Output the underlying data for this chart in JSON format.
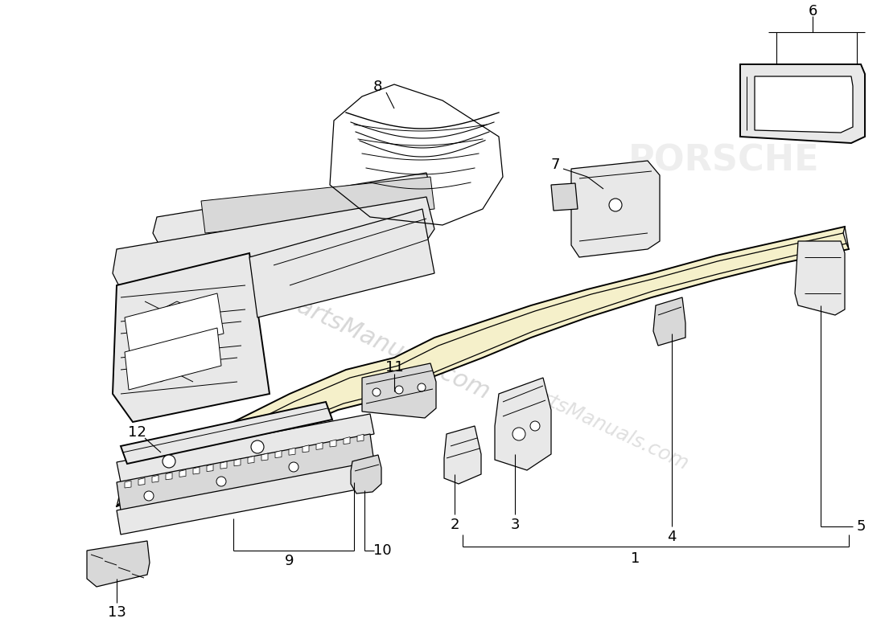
{
  "background_color": "#ffffff",
  "line_color": "#000000",
  "watermark_text": "partsManuals.com",
  "watermark_color": "#b0b0b0",
  "font_size": 13,
  "lw_main": 1.4,
  "lw_thin": 0.9,
  "lw_call": 0.8,
  "rail_fill": "#f5f0c8",
  "part_fill": "#e8e8e8",
  "part_fill2": "#d8d8d8"
}
